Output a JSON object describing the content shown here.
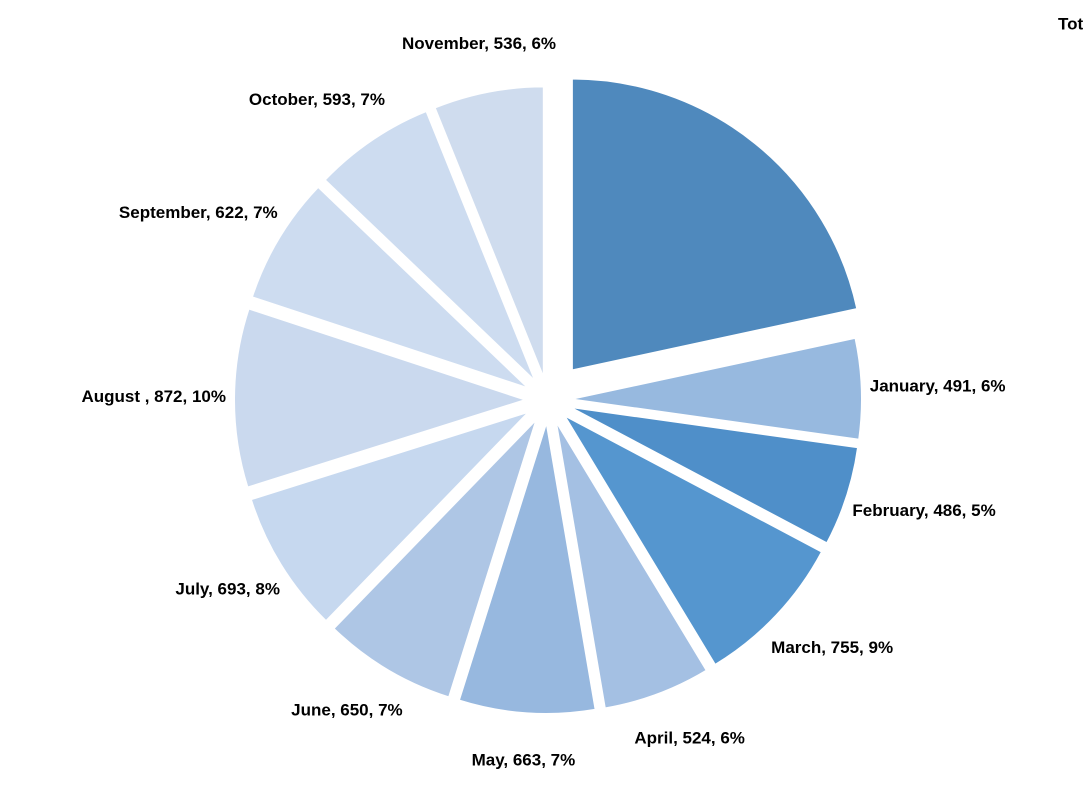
{
  "chart_data": {
    "type": "pie",
    "categories": [
      "Tot",
      "January",
      "February",
      "March",
      "April",
      "May",
      "June",
      "July",
      "August ",
      "September",
      "October",
      "November"
    ],
    "values": [
      1900,
      491,
      486,
      755,
      524,
      663,
      650,
      693,
      872,
      622,
      593,
      536
    ],
    "value_labels": [
      "Tot",
      "January, 491, 6%",
      "February, 486, 5%",
      "March, 755, 9%",
      "April, 524, 6%",
      "May, 663, 7%",
      "June, 650, 7%",
      "July, 693, 8%",
      "August , 872, 10%",
      "September, 622, 7%",
      "October, 593, 7%",
      "November, 536, 6%"
    ],
    "colors": [
      "#4f89bd",
      "#97b9df",
      "#4f8fc9",
      "#5596cf",
      "#a4c0e3",
      "#97b8df",
      "#aec6e5",
      "#c6d8ef",
      "#cad9ee",
      "#cddcf0",
      "#cddcf0",
      "#cfdcee"
    ]
  }
}
